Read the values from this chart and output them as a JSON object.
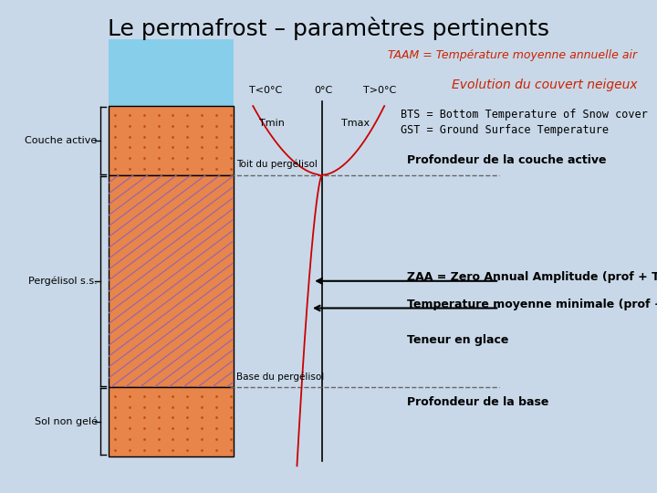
{
  "title": "Le permafrost – paramètres pertinents",
  "bg_color": "#c8d8e8",
  "title_color": "#000000",
  "title_fontsize": 18,
  "taam_text": "TAAM = Température moyenne annuelle air",
  "taam_color": "#cc2200",
  "evolution_text": "Evolution du couvert neigeux",
  "evolution_color": "#cc2200",
  "bts_gst_line1": "BTS = Bottom Temperature of Snow cover",
  "bts_gst_line2": "GST = Ground Surface Temperature",
  "profondeur_active_text": "Profondeur de la couche active",
  "zaa_text": "ZAA = Zero Annual Amplitude (prof + T°)",
  "temp_min_text": "Temperature moyenne minimale (prof + T°)",
  "teneur_glace_text": "Teneur en glace",
  "profondeur_base_text": "Profondeur de la base",
  "snow_color": "#87CEEB",
  "active_color": "#E8854A",
  "unfrozen_color": "#E8854A",
  "permafrost_bg_color": "#E8854A",
  "permafrost_hatch_color": "#9966AA",
  "curve_color": "#cc0000",
  "dashed_line_color": "#666666"
}
